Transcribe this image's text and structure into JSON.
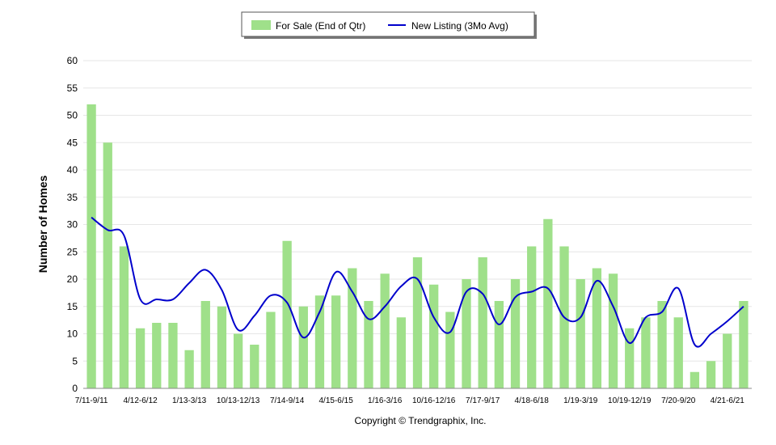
{
  "chart_data": {
    "type": "bar",
    "ylabel": "Number of Homes",
    "xlabel": "",
    "ylim": [
      0,
      60
    ],
    "yticks": [
      0,
      5,
      10,
      15,
      20,
      25,
      30,
      35,
      40,
      45,
      50,
      55,
      60
    ],
    "grid": true,
    "legend_position": "top-center",
    "categories": [
      "7/11-9/11",
      "10/11-12/11",
      "1/12-3/12",
      "4/12-6/12",
      "7/12-9/12",
      "10/12-12/12",
      "1/13-3/13",
      "4/13-6/13",
      "7/13-9/13",
      "10/13-12/13",
      "1/14-3/14",
      "4/14-6/14",
      "7/14-9/14",
      "10/14-12/14",
      "1/15-3/15",
      "4/15-6/15",
      "7/15-9/15",
      "10/15-12/15",
      "1/16-3/16",
      "4/16-6/16",
      "7/16-9/16",
      "10/16-12/16",
      "1/17-3/17",
      "4/17-6/17",
      "7/17-9/17",
      "10/17-12/17",
      "1/18-3/18",
      "4/18-6/18",
      "7/18-9/18",
      "10/18-12/18",
      "1/19-3/19",
      "4/19-6/19",
      "7/19-9/19",
      "10/19-12/19",
      "1/20-3/20",
      "4/20-6/20",
      "7/20-9/20",
      "10/20-12/20",
      "1/21-3/21",
      "4/21-6/21",
      "7/21-9/21"
    ],
    "tick_labels": [
      "7/11-9/11",
      "4/12-6/12",
      "1/13-3/13",
      "10/13-12/13",
      "7/14-9/14",
      "4/15-6/15",
      "1/16-3/16",
      "10/16-12/16",
      "7/17-9/17",
      "4/18-6/18",
      "1/19-3/19",
      "10/19-12/19",
      "7/20-9/20",
      "4/21-6/21"
    ],
    "series": [
      {
        "name": "For Sale (End of Qtr)",
        "type": "bar",
        "color": "#9fe08a",
        "values": [
          52,
          45,
          26,
          11,
          12,
          12,
          7,
          16,
          15,
          10,
          8,
          14,
          27,
          15,
          17,
          17,
          22,
          16,
          21,
          13,
          24,
          19,
          14,
          20,
          24,
          16,
          20,
          26,
          31,
          26,
          20,
          22,
          21,
          11,
          13,
          16,
          13,
          3,
          5,
          10,
          16
        ]
      },
      {
        "name": "New Listing (3Mo Avg)",
        "type": "line",
        "color": "#0000cc",
        "values": [
          31.3,
          29,
          28,
          16.3,
          16.3,
          16.3,
          19.3,
          21.7,
          18,
          10.7,
          13.3,
          17,
          15.7,
          9.3,
          14,
          21.3,
          17.7,
          12.7,
          15,
          18.7,
          20,
          13,
          10.3,
          17.7,
          17.3,
          11.7,
          16.7,
          17.7,
          18.3,
          13,
          13,
          19.7,
          15,
          8.3,
          13,
          14,
          18.3,
          8,
          10,
          12.3,
          15
        ]
      }
    ]
  },
  "credit": "Copyright © Trendgraphix, Inc."
}
